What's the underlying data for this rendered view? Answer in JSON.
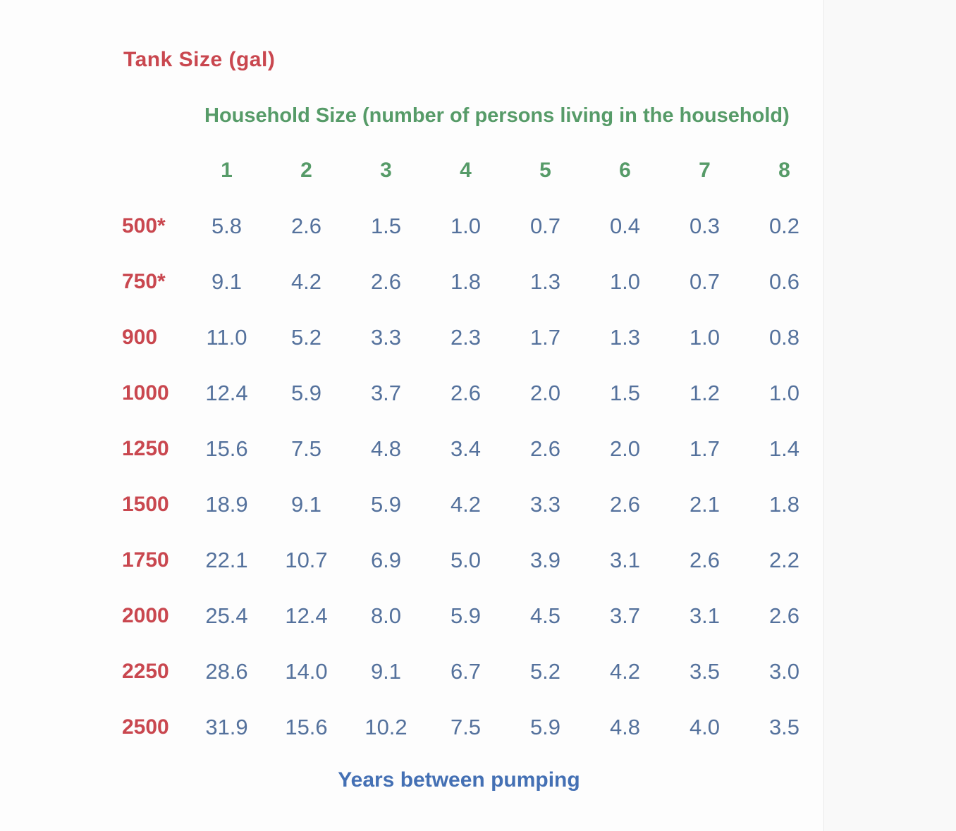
{
  "colors": {
    "tank_size_red": "#c9474f",
    "household_green": "#569b68",
    "value_blue_gray": "#54719c",
    "footer_blue": "#4470b4",
    "page_background": "#fdfdfd"
  },
  "chart_data": {
    "type": "table",
    "corner_label": "Tank Size (gal)",
    "column_group_label": "Household Size (number of persons living in the household)",
    "footer_label": "Years between pumping",
    "columns": [
      "1",
      "2",
      "3",
      "4",
      "5",
      "6",
      "7",
      "8"
    ],
    "rows": [
      {
        "label": "500*",
        "values": [
          "5.8",
          "2.6",
          "1.5",
          "1.0",
          "0.7",
          "0.4",
          "0.3",
          "0.2"
        ]
      },
      {
        "label": "750*",
        "values": [
          "9.1",
          "4.2",
          "2.6",
          "1.8",
          "1.3",
          "1.0",
          "0.7",
          "0.6"
        ]
      },
      {
        "label": "900",
        "values": [
          "11.0",
          "5.2",
          "3.3",
          "2.3",
          "1.7",
          "1.3",
          "1.0",
          "0.8"
        ]
      },
      {
        "label": "1000",
        "values": [
          "12.4",
          "5.9",
          "3.7",
          "2.6",
          "2.0",
          "1.5",
          "1.2",
          "1.0"
        ]
      },
      {
        "label": "1250",
        "values": [
          "15.6",
          "7.5",
          "4.8",
          "3.4",
          "2.6",
          "2.0",
          "1.7",
          "1.4"
        ]
      },
      {
        "label": "1500",
        "values": [
          "18.9",
          "9.1",
          "5.9",
          "4.2",
          "3.3",
          "2.6",
          "2.1",
          "1.8"
        ]
      },
      {
        "label": "1750",
        "values": [
          "22.1",
          "10.7",
          "6.9",
          "5.0",
          "3.9",
          "3.1",
          "2.6",
          "2.2"
        ]
      },
      {
        "label": "2000",
        "values": [
          "25.4",
          "12.4",
          "8.0",
          "5.9",
          "4.5",
          "3.7",
          "3.1",
          "2.6"
        ]
      },
      {
        "label": "2250",
        "values": [
          "28.6",
          "14.0",
          "9.1",
          "6.7",
          "5.2",
          "4.2",
          "3.5",
          "3.0"
        ]
      },
      {
        "label": "2500",
        "values": [
          "31.9",
          "15.6",
          "10.2",
          "7.5",
          "5.9",
          "4.8",
          "4.0",
          "3.5"
        ]
      }
    ]
  }
}
